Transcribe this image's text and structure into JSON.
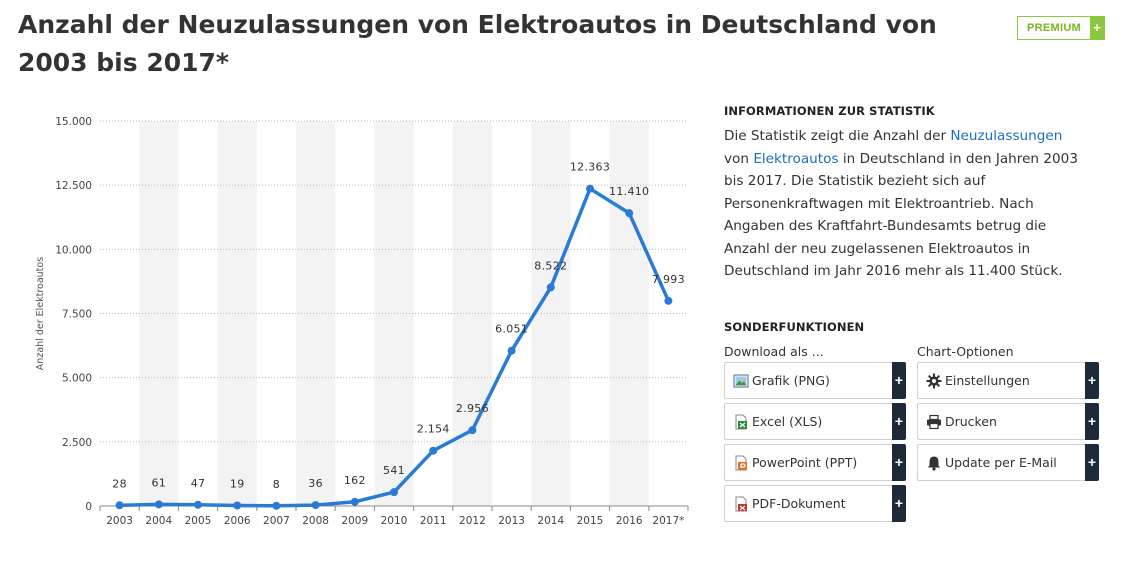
{
  "page": {
    "title": "Anzahl der Neuzulassungen von Elektroautos in Deutschland von 2003 bis 2017*",
    "premium_label": "PREMIUM",
    "premium_plus": "+"
  },
  "colors": {
    "line": "#2a7bd6",
    "premium": "#8dc63f",
    "button_plus": "#1d2a3a",
    "link": "#1a6fc4"
  },
  "chart_data": {
    "type": "line",
    "x": [
      "2003",
      "2004",
      "2005",
      "2006",
      "2007",
      "2008",
      "2009",
      "2010",
      "2011",
      "2012",
      "2013",
      "2014",
      "2015",
      "2016",
      "2017*"
    ],
    "series": [
      {
        "values": [
          28,
          61,
          47,
          19,
          8,
          36,
          162,
          541,
          2154,
          2956,
          6051,
          8522,
          12363,
          11410,
          7993
        ]
      }
    ],
    "data_labels": [
      "28",
      "61",
      "47",
      "19",
      "8",
      "36",
      "162",
      "541",
      "2.154",
      "2.956",
      "6.051",
      "8.522",
      "12.363",
      "11.410",
      "7.993"
    ],
    "ylabel": "Anzahl der Elektroautos",
    "ylim": [
      0,
      15000
    ],
    "yticks": [
      0,
      2500,
      5000,
      7500,
      10000,
      12500,
      15000
    ],
    "ytick_labels": [
      "0",
      "2.500",
      "5.000",
      "7.500",
      "10.000",
      "12.500",
      "15.000"
    ],
    "grid": true,
    "legend": "none"
  },
  "info": {
    "title": "INFORMATIONEN ZUR STATISTIK",
    "text_1": "Die Statistik zeigt die Anzahl der ",
    "link_1": "Neuzulassungen",
    "text_2": " von ",
    "link_2": "Elektroautos",
    "text_3": " in Deutschland in den Jahren 2003 bis 2017. Die Statistik bezieht sich auf Personenkraftwagen mit Elektroantrieb. Nach Angaben des Kraftfahrt-Bundesamts betrug die Anzahl der neu zugelassenen Elektroautos in Deutschland im Jahr 2016 mehr als 11.400 Stück."
  },
  "sonder": {
    "title": "SONDERFUNKTIONEN",
    "download_label": "Download als ...",
    "options_label": "Chart-Optionen",
    "plus": "+",
    "download_buttons": [
      {
        "label": "Grafik (PNG)",
        "icon": "image-file-icon"
      },
      {
        "label": "Excel (XLS)",
        "icon": "excel-file-icon"
      },
      {
        "label": "PowerPoint (PPT)",
        "icon": "powerpoint-file-icon"
      },
      {
        "label": "PDF-Dokument",
        "icon": "pdf-file-icon"
      }
    ],
    "option_buttons": [
      {
        "label": "Einstellungen",
        "icon": "gear-icon"
      },
      {
        "label": "Drucken",
        "icon": "printer-icon"
      },
      {
        "label": "Update per E-Mail",
        "icon": "bell-icon"
      }
    ]
  }
}
